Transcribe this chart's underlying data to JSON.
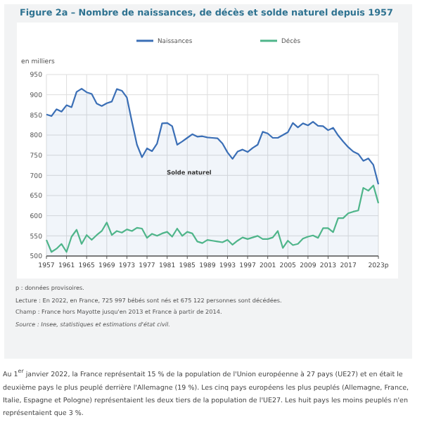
{
  "chart_data": {
    "type": "line",
    "title": "Figure 2a – Nombre de naissances, de décès et solde naturel depuis 1957",
    "ylabel": "en milliers",
    "categories": [
      "1957",
      null,
      null,
      null,
      "1961",
      null,
      null,
      null,
      "1965",
      null,
      null,
      null,
      "1969",
      null,
      null,
      null,
      "1973",
      null,
      null,
      null,
      "1977",
      null,
      null,
      null,
      "1981",
      null,
      null,
      null,
      "1985",
      null,
      null,
      null,
      "1989",
      null,
      null,
      null,
      "1993",
      null,
      null,
      null,
      "1997",
      null,
      null,
      null,
      "2001",
      null,
      null,
      null,
      "2005",
      null,
      null,
      null,
      "2009",
      null,
      null,
      null,
      "2013",
      null,
      null,
      null,
      "2017",
      null,
      null,
      null,
      null,
      null,
      "2023p"
    ],
    "series": [
      {
        "name": "Naissances",
        "type": "area",
        "color": "#3b6fb6",
        "values": [
          851,
          847,
          864,
          858,
          874,
          869,
          907,
          915,
          906,
          902,
          878,
          872,
          879,
          883,
          914,
          910,
          893,
          833,
          776,
          745,
          767,
          760,
          779,
          829,
          830,
          822,
          776,
          784,
          793,
          802,
          796,
          797,
          794,
          793,
          792,
          779,
          757,
          741,
          759,
          764,
          758,
          768,
          776,
          808,
          804,
          793,
          793,
          800,
          807,
          830,
          819,
          829,
          824,
          833,
          823,
          822,
          812,
          818,
          799,
          784,
          770,
          759,
          753,
          736,
          742,
          726,
          678
        ]
      },
      {
        "name": "Décès",
        "color": "#4fb58a",
        "values": [
          540,
          510,
          518,
          530,
          510,
          548,
          565,
          530,
          552,
          540,
          552,
          562,
          583,
          552,
          562,
          558,
          566,
          562,
          570,
          568,
          545,
          555,
          550,
          556,
          560,
          548,
          568,
          550,
          560,
          556,
          536,
          532,
          540,
          538,
          536,
          534,
          540,
          528,
          538,
          546,
          542,
          546,
          550,
          542,
          542,
          546,
          562,
          520,
          538,
          527,
          530,
          543,
          548,
          551,
          545,
          569,
          569,
          559,
          594,
          594,
          606,
          610,
          613,
          669,
          662,
          675,
          631
        ]
      }
    ],
    "ylim": [
      500,
      950
    ],
    "yticks": [
      500,
      550,
      600,
      650,
      700,
      750,
      800,
      850,
      900,
      950
    ],
    "grid": true,
    "legend": "top",
    "marker": "none",
    "annotations": [
      "Solde naturel",
      "p : données provisoires.",
      "Lecture : En 2022, en France, 725 997 bébés sont nés et 675 122 personnes sont décédées.",
      "Champ : France hors Mayotte jusqu'en 2013 et France à partir de 2014.",
      "Source : Insee, statistiques et estimations d'état civil.",
      "Au 1$^{er}$ janvier 2022, la France représentait 15 % de la population de l'Union européenne à 27 pays (UE27) et en était le deuxième pays le plus peuplé derrière l'Allemagne (19 %). Les cinq pays européens les plus peuplés (Allemagne, France, Italie, Espagne et Pologne) représentaient les deux tiers de la population de l'UE27. Les huit pays les moins peuplés n'en représentaient que 3 %."
    ]
  }
}
